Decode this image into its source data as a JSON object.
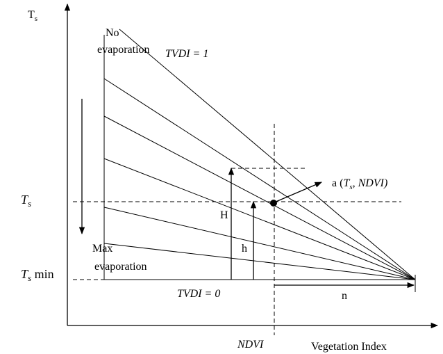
{
  "y_axis_label": {
    "main": "T",
    "sub": "s"
  },
  "x_axis_label": "Vegetation Index",
  "top_label": [
    "No",
    "evaporation"
  ],
  "bottom_label": [
    "Max",
    "evaporation"
  ],
  "tvdi_1": "TVDI = 1",
  "tvdi_0": "TVDI = 0",
  "ts_label": {
    "main": "T",
    "sub": "s"
  },
  "ts_min_label": {
    "main": "T",
    "sub": "s",
    "suffix": " min"
  },
  "point_label": {
    "prefix": "a (",
    "main": "T",
    "sub": "s",
    "suffix": ", NDVI)"
  },
  "H": "H",
  "h": "h",
  "n": "n",
  "ndvi": "NDVI"
}
